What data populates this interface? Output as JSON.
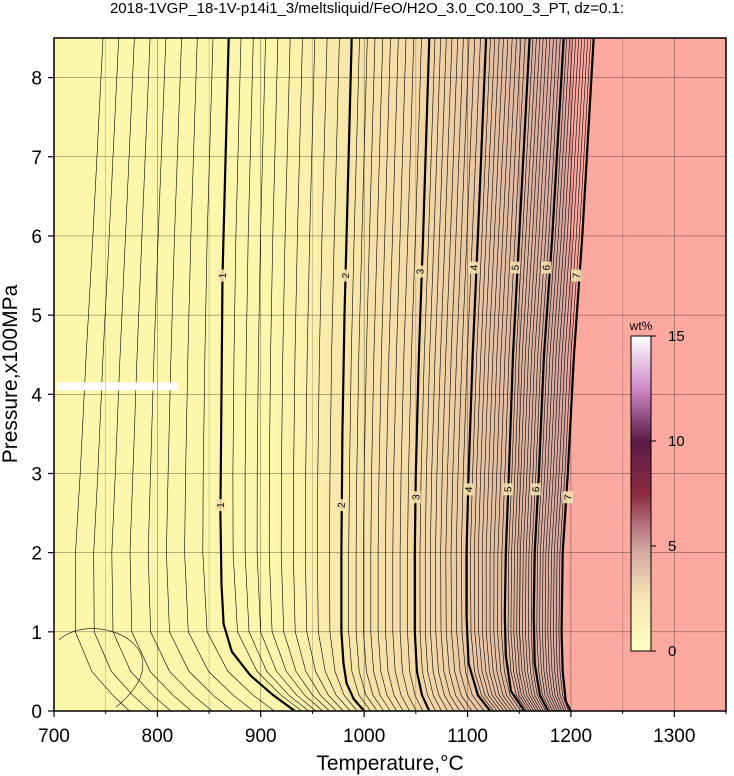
{
  "chart_data": {
    "type": "contour",
    "title": "2018-1VGP_18-1V-p14i1_3/meltsliquid/FeO/H2O_3.0_C0.100_3_PT, dz=0.1:",
    "xlabel": "Temperature,°C",
    "ylabel": "Pressure,x100MPa",
    "xlim": [
      700,
      1350
    ],
    "ylim": [
      0,
      8.5
    ],
    "xticks": [
      "700",
      "800",
      "900",
      "1000",
      "1100",
      "1200",
      "1300"
    ],
    "yticks": [
      "0",
      "1",
      "2",
      "3",
      "4",
      "5",
      "6",
      "7",
      "8"
    ],
    "grid": true,
    "contour_interval": 0.1,
    "labeled_contours": [
      {
        "label": "1",
        "value": 1,
        "points": [
          [
            933,
            0
          ],
          [
            912,
            0.2
          ],
          [
            890,
            0.45
          ],
          [
            872,
            0.75
          ],
          [
            864,
            1.1
          ],
          [
            862,
            1.6
          ],
          [
            861,
            2.5
          ],
          [
            862,
            4
          ],
          [
            863,
            5.5
          ],
          [
            866,
            7
          ],
          [
            869,
            8.5
          ]
        ]
      },
      {
        "label": "2",
        "value": 2,
        "points": [
          [
            1000,
            0
          ],
          [
            990,
            0.15
          ],
          [
            983,
            0.35
          ],
          [
            980,
            0.6
          ],
          [
            978,
            1.0
          ],
          [
            978,
            2.0
          ],
          [
            979,
            3.5
          ],
          [
            981,
            5.0
          ],
          [
            984,
            6.5
          ],
          [
            988,
            8.5
          ]
        ]
      },
      {
        "label": "3",
        "value": 3,
        "points": [
          [
            1063,
            0
          ],
          [
            1056,
            0.2
          ],
          [
            1051,
            0.5
          ],
          [
            1049,
            1.0
          ],
          [
            1049,
            2.0
          ],
          [
            1050,
            3.0
          ],
          [
            1053,
            4.5
          ],
          [
            1057,
            6.0
          ],
          [
            1063,
            8.5
          ]
        ]
      },
      {
        "label": "4",
        "value": 4,
        "points": [
          [
            1122,
            0
          ],
          [
            1110,
            0.2
          ],
          [
            1101,
            0.6
          ],
          [
            1099,
            1.2
          ],
          [
            1099,
            2.0
          ],
          [
            1101,
            3.0
          ],
          [
            1105,
            4.5
          ],
          [
            1110,
            6.0
          ],
          [
            1118,
            8.5
          ]
        ]
      },
      {
        "label": "5",
        "value": 5,
        "points": [
          [
            1155,
            0
          ],
          [
            1142,
            0.25
          ],
          [
            1137,
            0.7
          ],
          [
            1136,
            1.2
          ],
          [
            1137,
            2.0
          ],
          [
            1140,
            3.0
          ],
          [
            1144,
            4.5
          ],
          [
            1150,
            6.0
          ],
          [
            1160,
            8.5
          ]
        ]
      },
      {
        "label": "6",
        "value": 6,
        "points": [
          [
            1178,
            0
          ],
          [
            1170,
            0.2
          ],
          [
            1165,
            0.6
          ],
          [
            1164,
            1.2
          ],
          [
            1165,
            2.0
          ],
          [
            1169,
            3.0
          ],
          [
            1174,
            4.5
          ],
          [
            1182,
            6.0
          ],
          [
            1193,
            8.5
          ]
        ]
      },
      {
        "label": "7",
        "value": 7,
        "points": [
          [
            1200,
            0
          ],
          [
            1195,
            0.12
          ],
          [
            1192,
            0.5
          ],
          [
            1191,
            1.0
          ],
          [
            1192,
            2.0
          ],
          [
            1197,
            3.0
          ],
          [
            1203,
            4.5
          ],
          [
            1211,
            6.0
          ],
          [
            1222,
            8.5
          ]
        ]
      }
    ],
    "contour_labels": [
      {
        "text": "1",
        "x": 863,
        "y": 5.5
      },
      {
        "text": "1",
        "x": 861,
        "y": 2.6
      },
      {
        "text": "2",
        "x": 982,
        "y": 5.5
      },
      {
        "text": "2",
        "x": 978,
        "y": 2.6
      },
      {
        "text": "3",
        "x": 1054,
        "y": 5.55
      },
      {
        "text": "3",
        "x": 1050,
        "y": 2.7
      },
      {
        "text": "4",
        "x": 1106,
        "y": 5.6
      },
      {
        "text": "4",
        "x": 1101,
        "y": 2.8
      },
      {
        "text": "5",
        "x": 1146,
        "y": 5.6
      },
      {
        "text": "5",
        "x": 1139,
        "y": 2.8
      },
      {
        "text": "6",
        "x": 1176,
        "y": 5.6
      },
      {
        "text": "6",
        "x": 1166,
        "y": 2.8
      },
      {
        "text": "7",
        "x": 1205,
        "y": 5.5
      },
      {
        "text": "7",
        "x": 1197,
        "y": 2.7
      }
    ],
    "colorbar": {
      "label": "wt%",
      "range": [
        0,
        15
      ],
      "ticks": [
        "0",
        "5",
        "10",
        "15"
      ],
      "colors": [
        "#ffffbf",
        "#f8e7b4",
        "#cfa0a0",
        "#8b2a40",
        "#5a1a45",
        "#d08ac8",
        "#ffffff"
      ]
    },
    "fill_colors": {
      "low": "#fdf7ac",
      "mid": "#f3d8a6",
      "high": "#d9a8a0",
      "saturated": "#fda9a0"
    },
    "gap_band": {
      "x": [
        703,
        820
      ],
      "y": 4.1
    }
  }
}
